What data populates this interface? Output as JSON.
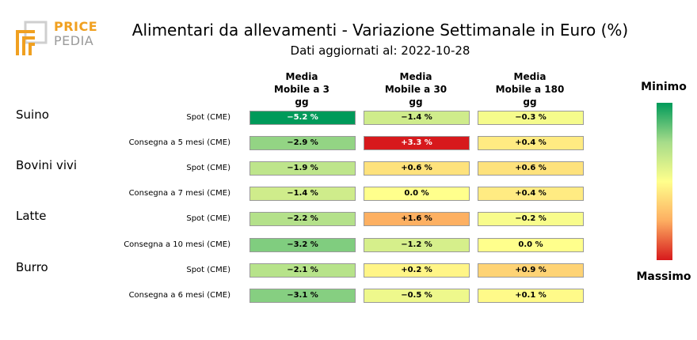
{
  "logo": {
    "line1": "PRICE",
    "line2": "PEDIA"
  },
  "title": "Alimentari da allevamenti - Variazione Settimanale in Euro (%)",
  "subtitle": "Dati aggiornati al: 2022-10-28",
  "chart_data": {
    "type": "heatmap",
    "title": "Alimentari da allevamenti - Variazione Settimanale in Euro (%)",
    "subtitle": "Dati aggiornati al: 2022-10-28",
    "columns": [
      "Media\nMobile a 3\ngg",
      "Media\nMobile a 30\ngg",
      "Media\nMobile a 180\ngg"
    ],
    "groups": [
      "Suino",
      "Bovini vivi",
      "Latte",
      "Burro"
    ],
    "rows": [
      {
        "label": "Spot (CME)",
        "values": [
          -5.2,
          -1.4,
          -0.3
        ],
        "text": [
          "−5.2 %",
          "−1.4 %",
          "−0.3 %"
        ]
      },
      {
        "label": "Consegna a 5 mesi (CME)",
        "values": [
          -2.9,
          3.3,
          0.4
        ],
        "text": [
          "−2.9 %",
          "+3.3 %",
          "+0.4 %"
        ]
      },
      {
        "label": "Spot (CME)",
        "values": [
          -1.9,
          0.6,
          0.6
        ],
        "text": [
          "−1.9 %",
          "+0.6 %",
          "+0.6 %"
        ]
      },
      {
        "label": "Consegna a 7 mesi (CME)",
        "values": [
          -1.4,
          0.0,
          0.4
        ],
        "text": [
          "−1.4 %",
          "0.0 %",
          "+0.4 %"
        ]
      },
      {
        "label": "Spot (CME)",
        "values": [
          -2.2,
          1.6,
          -0.2
        ],
        "text": [
          "−2.2 %",
          "+1.6 %",
          "−0.2 %"
        ]
      },
      {
        "label": "Consegna a 10 mesi (CME)",
        "values": [
          -3.2,
          -1.2,
          0.0
        ],
        "text": [
          "−3.2 %",
          "−1.2 %",
          "0.0 %"
        ]
      },
      {
        "label": "Spot (CME)",
        "values": [
          -2.1,
          0.2,
          0.9
        ],
        "text": [
          "−2.1 %",
          "+0.2 %",
          "+0.9 %"
        ]
      },
      {
        "label": "Consegna a 6 mesi (CME)",
        "values": [
          -3.1,
          -0.5,
          0.1
        ],
        "text": [
          "−3.1 %",
          "−0.5 %",
          "+0.1 %"
        ]
      }
    ],
    "legend": {
      "top": "Minimo",
      "bottom": "Massimo"
    },
    "scale": {
      "min": -5.2,
      "max": 3.3
    },
    "colors": {
      "scale_min": "#009a5a",
      "scale_low": "#a6dc8a",
      "scale_mid": "#ffff8c",
      "scale_high": "#fdae61",
      "scale_max": "#d7191c"
    }
  }
}
